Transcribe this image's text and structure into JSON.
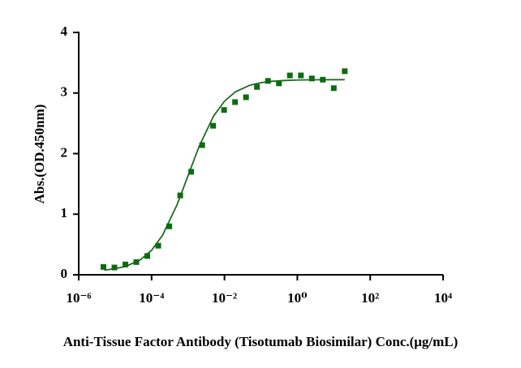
{
  "chart_data": {
    "type": "scatter",
    "xlabel": "Anti-Tissue Factor Antibody (Tisotumab Biosimilar)  Conc.(μg/mL)",
    "ylabel": "Abs.(OD.450nm)",
    "xscale": "log",
    "x": [
      4.76837158203125e-06,
      9.5367431640625e-06,
      1.9073486328125e-05,
      3.814697265625e-05,
      7.62939453125e-05,
      0.000152587890625,
      0.00030517578125,
      0.0006103515625,
      0.001220703125,
      0.00244140625,
      0.0048828125,
      0.009765625,
      0.01953125,
      0.0390625,
      0.078125,
      0.15625,
      0.3125,
      0.625,
      1.25,
      2.5,
      5,
      10,
      20
    ],
    "values": [
      0.13,
      0.12,
      0.17,
      0.21,
      0.31,
      0.48,
      0.8,
      1.31,
      1.7,
      2.14,
      2.46,
      2.72,
      2.85,
      2.93,
      3.1,
      3.2,
      3.16,
      3.29,
      3.29,
      3.24,
      3.22,
      3.08,
      3.36
    ],
    "color": "#0d6b12",
    "fit": {
      "color": "#1f6b22",
      "x": [
        5e-06,
        1e-05,
        2e-05,
        5e-05,
        0.0001,
        0.0002,
        0.0005,
        0.001,
        0.002,
        0.005,
        0.01,
        0.02,
        0.05,
        0.1,
        0.2,
        0.5,
        1,
        2,
        5,
        10,
        20
      ],
      "values": [
        0.077,
        0.1,
        0.141,
        0.25,
        0.405,
        0.653,
        1.156,
        1.635,
        2.114,
        2.617,
        2.865,
        3.02,
        3.129,
        3.171,
        3.193,
        3.208,
        3.214,
        3.217,
        3.219,
        3.22,
        3.22
      ]
    },
    "xlim": [
      1e-06,
      10000
    ],
    "xticks": [
      {
        "value": 1e-06,
        "label": "10⁻⁶"
      },
      {
        "value": 0.0001,
        "label": "10⁻⁴"
      },
      {
        "value": 0.01,
        "label": "10⁻²"
      },
      {
        "value": 1,
        "label": "10⁰"
      },
      {
        "value": 100,
        "label": "10²"
      },
      {
        "value": 10000,
        "label": "10⁴"
      }
    ],
    "ylim": [
      0,
      4
    ],
    "yticks": [
      0,
      1,
      2,
      3,
      4
    ]
  }
}
